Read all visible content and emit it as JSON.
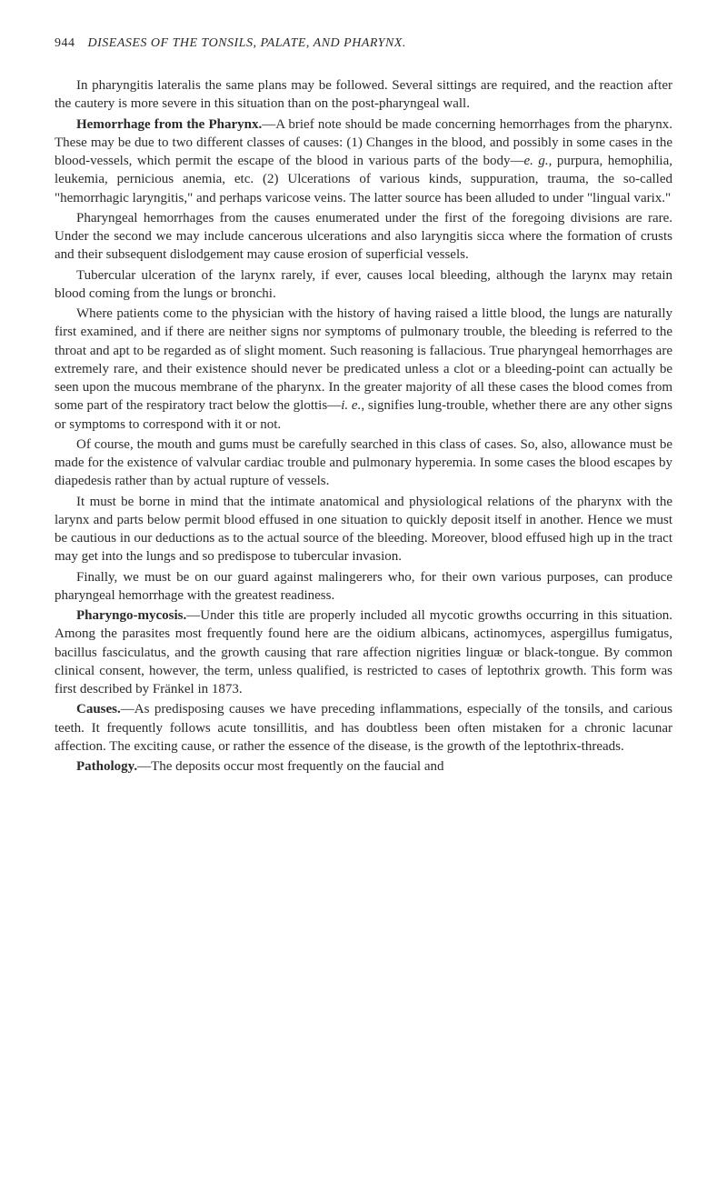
{
  "header": {
    "page_number": "944",
    "running_title": "DISEASES OF THE TONSILS, PALATE, AND PHARYNX."
  },
  "paragraphs": {
    "p1": "In pharyngitis lateralis the same plans may be followed. Several sittings are required, and the reaction after the cautery is more severe in this situation than on the post-pharyngeal wall.",
    "p2_title": "Hemorrhage from the Pharynx.",
    "p2_rest": "—A brief note should be made concerning hemorrhages from the pharynx. These may be due to two different classes of causes: (1) Changes in the blood, and possibly in some cases in the blood-vessels, which permit the escape of the blood in various parts of the body—",
    "p2_eg": "e. g.",
    "p2_after_eg": ", purpura, hemophilia, leukemia, pernicious anemia, etc. (2) Ulcerations of various kinds, suppuration, trauma, the so-called \"hemorrhagic laryngitis,\" and perhaps varicose veins. The latter source has been alluded to under \"lingual varix.\"",
    "p3": "Pharyngeal hemorrhages from the causes enumerated under the first of the foregoing divisions are rare. Under the second we may include cancerous ulcerations and also laryngitis sicca where the formation of crusts and their subsequent dislodgement may cause erosion of superficial vessels.",
    "p4": "Tubercular ulceration of the larynx rarely, if ever, causes local bleeding, although the larynx may retain blood coming from the lungs or bronchi.",
    "p5": "Where patients come to the physician with the history of having raised a little blood, the lungs are naturally first examined, and if there are neither signs nor symptoms of pulmonary trouble, the bleeding is referred to the throat and apt to be regarded as of slight moment. Such reasoning is fallacious. True pharyngeal hemorrhages are extremely rare, and their existence should never be predicated unless a clot or a bleeding-point can actually be seen upon the mucous membrane of the pharynx. In the greater majority of all these cases the blood comes from some part of the respiratory tract below the glottis—",
    "p5_ie": "i. e.",
    "p5_after_ie": ", signifies lung-trouble, whether there are any other signs or symptoms to correspond with it or not.",
    "p6": "Of course, the mouth and gums must be carefully searched in this class of cases. So, also, allowance must be made for the existence of valvular cardiac trouble and pulmonary hyperemia. In some cases the blood escapes by diapedesis rather than by actual rupture of vessels.",
    "p7": "It must be borne in mind that the intimate anatomical and physiological relations of the pharynx with the larynx and parts below permit blood effused in one situation to quickly deposit itself in another. Hence we must be cautious in our deductions as to the actual source of the bleeding. Moreover, blood effused high up in the tract may get into the lungs and so predispose to tubercular invasion.",
    "p8": "Finally, we must be on our guard against malingerers who, for their own various purposes, can produce pharyngeal hemorrhage with the greatest readiness.",
    "p9_title": "Pharyngo-mycosis.",
    "p9_rest": "—Under this title are properly included all mycotic growths occurring in this situation. Among the parasites most frequently found here are the oidium albicans, actinomyces, aspergillus fumigatus, bacillus fasciculatus, and the growth causing that rare affection nigrities linguæ or black-tongue. By common clinical consent, however, the term, unless qualified, is restricted to cases of leptothrix growth. This form was first described by Fränkel in 1873.",
    "p10_title": "Causes.",
    "p10_rest": "—As predisposing causes we have preceding inflammations, especially of the tonsils, and carious teeth. It frequently follows acute tonsillitis, and has doubtless been often mistaken for a chronic lacunar affection. The exciting cause, or rather the essence of the disease, is the growth of the leptothrix-threads.",
    "p11_title": "Pathology.",
    "p11_rest": "—The deposits occur most frequently on the faucial and"
  }
}
